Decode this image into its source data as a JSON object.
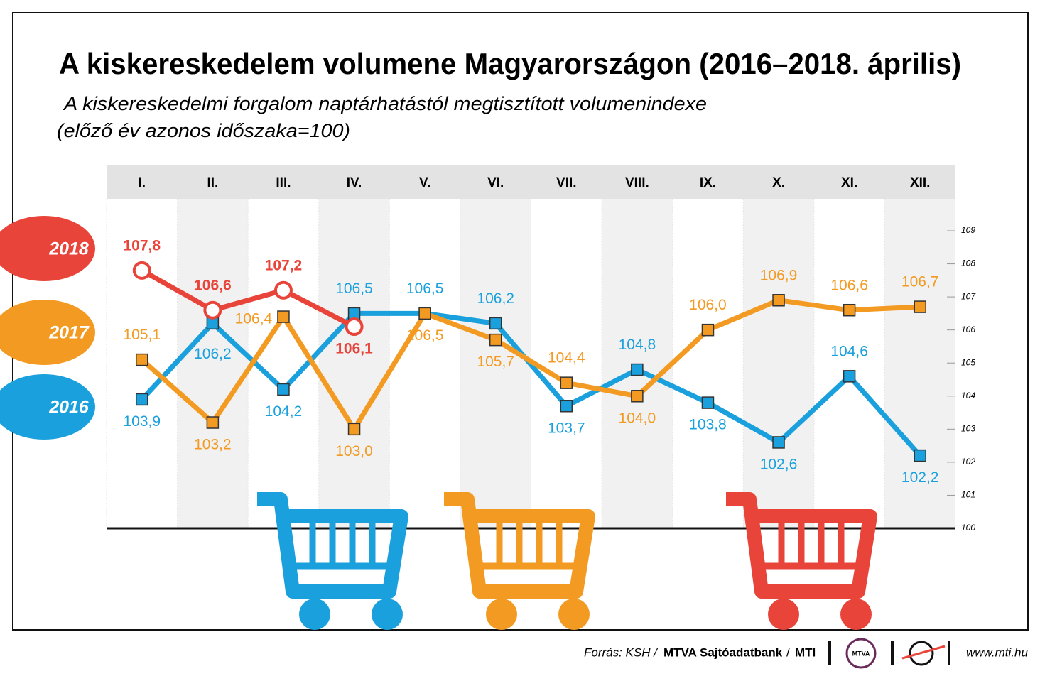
{
  "chart_data": {
    "type": "line",
    "title": "A kiskereskedelem volumene Magyarországon (2016–2018. április)",
    "subtitle": [
      "A kiskereskedelmi forgalom naptárhatástól megtisztított volumenindexe",
      "(előző év azonos időszaka=100)"
    ],
    "categories": [
      "I.",
      "II.",
      "III.",
      "IV.",
      "V.",
      "VI.",
      "VII.",
      "VIII.",
      "IX.",
      "X.",
      "XI.",
      "XII."
    ],
    "ylim": [
      100,
      109
    ],
    "yticks": [
      100,
      101,
      102,
      103,
      104,
      105,
      106,
      107,
      108,
      109
    ],
    "series": [
      {
        "name": "2018",
        "color": "#e8443a",
        "values": [
          107.8,
          106.6,
          107.2,
          106.1,
          null,
          null,
          null,
          null,
          null,
          null,
          null,
          null
        ],
        "value_labels": [
          "107,8",
          "106,6",
          "107,2",
          "106,1",
          null,
          null,
          null,
          null,
          null,
          null,
          null,
          null
        ]
      },
      {
        "name": "2017",
        "color": "#f39a22",
        "values": [
          105.1,
          103.2,
          106.4,
          103.0,
          106.5,
          105.7,
          104.4,
          104.0,
          106.0,
          106.9,
          106.6,
          106.7
        ],
        "value_labels": [
          "105,1",
          "103,2",
          "106,4",
          "103,0",
          "106,5",
          "105,7",
          "104,4",
          "104,0",
          "106,0",
          "106,9",
          "106,6",
          "106,7"
        ]
      },
      {
        "name": "2016",
        "color": "#1aa0dc",
        "values": [
          103.9,
          106.2,
          104.2,
          106.5,
          106.5,
          106.2,
          103.7,
          104.8,
          103.8,
          102.6,
          104.6,
          102.2
        ],
        "value_labels": [
          "103,9",
          "106,2",
          "104,2",
          "106,5",
          "106,5",
          "106,2",
          "103,7",
          "104,8",
          "103,8",
          "102,6",
          "104,6",
          "102,2"
        ]
      }
    ],
    "source": [
      "Forrás: KSH /",
      "MTVA Sajtóadatbank",
      "/",
      "MTI"
    ],
    "logo": "MTVA",
    "url": "www.mti.hu"
  }
}
